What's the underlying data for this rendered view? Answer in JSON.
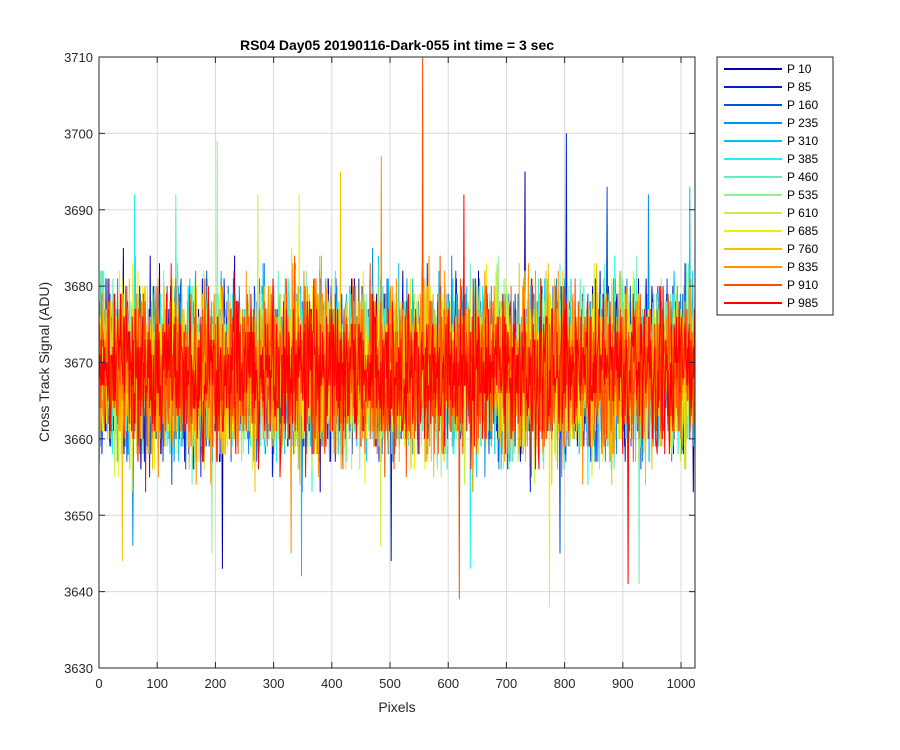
{
  "chart_data": {
    "type": "line",
    "title": "RS04 Day05 20190116-Dark-055 int time = 3 sec",
    "xlabel": "Pixels",
    "ylabel": "Cross Track Signal (ADU)",
    "xlim": [
      0,
      1024
    ],
    "ylim": [
      3630,
      3710
    ],
    "xticks": [
      0,
      100,
      200,
      300,
      400,
      500,
      600,
      700,
      800,
      900,
      1000
    ],
    "yticks": [
      3630,
      3640,
      3650,
      3660,
      3670,
      3680,
      3690,
      3700,
      3710
    ],
    "grid": true,
    "legend_position": "outside-right",
    "series": [
      {
        "name": "P 10",
        "color": "#0000AA",
        "mean": 3669,
        "min": 3643,
        "max": 3695
      },
      {
        "name": "P 85",
        "color": "#0020D8",
        "mean": 3669,
        "min": 3644,
        "max": 3700
      },
      {
        "name": "P 160",
        "color": "#0055E0",
        "mean": 3669,
        "min": 3645,
        "max": 3693
      },
      {
        "name": "P 235",
        "color": "#0090F0",
        "mean": 3669,
        "min": 3646,
        "max": 3692
      },
      {
        "name": "P 310",
        "color": "#00C0F8",
        "mean": 3669,
        "min": 3642,
        "max": 3693
      },
      {
        "name": "P 385",
        "color": "#20F0F0",
        "mean": 3669,
        "min": 3643,
        "max": 3692
      },
      {
        "name": "P 460",
        "color": "#60F0C0",
        "mean": 3669,
        "min": 3641,
        "max": 3692
      },
      {
        "name": "P 535",
        "color": "#90F090",
        "mean": 3669,
        "min": 3645,
        "max": 3699
      },
      {
        "name": "P 610",
        "color": "#C8F040",
        "mean": 3669,
        "min": 3646,
        "max": 3692
      },
      {
        "name": "P 685",
        "color": "#F0F000",
        "mean": 3669,
        "min": 3638,
        "max": 3692
      },
      {
        "name": "P 760",
        "color": "#F5C000",
        "mean": 3669,
        "min": 3644,
        "max": 3695
      },
      {
        "name": "P 835",
        "color": "#FF9000",
        "mean": 3669,
        "min": 3645,
        "max": 3697
      },
      {
        "name": "P 910",
        "color": "#FF5000",
        "mean": 3669,
        "min": 3639,
        "max": 3710
      },
      {
        "name": "P 985",
        "color": "#FF0000",
        "mean": 3669,
        "min": 3641,
        "max": 3692
      }
    ]
  }
}
